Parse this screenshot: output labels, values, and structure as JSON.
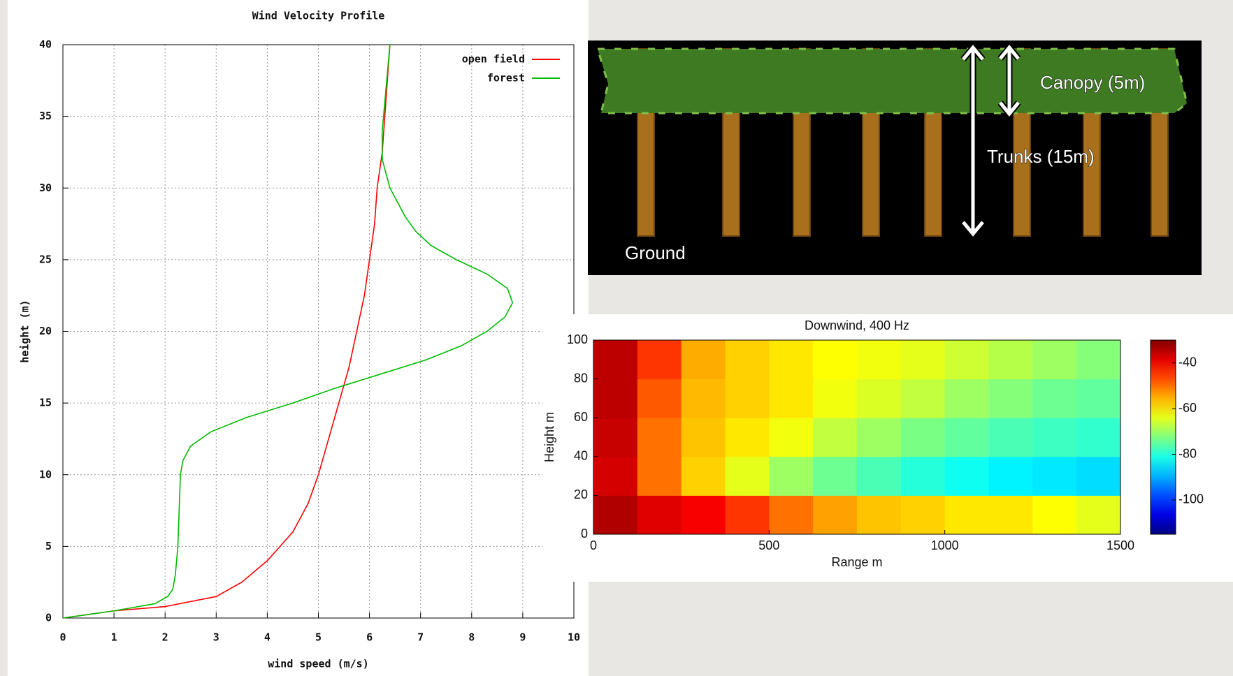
{
  "chart_data": [
    {
      "type": "line",
      "title": "Wind Velocity Profile",
      "x_label": "wind speed (m/s)",
      "y_label": "height (m)",
      "xlim": [
        0,
        10
      ],
      "ylim": [
        0,
        40
      ],
      "xticks": [
        0,
        1,
        2,
        3,
        4,
        5,
        6,
        7,
        8,
        9,
        10
      ],
      "yticks": [
        0,
        5,
        10,
        15,
        20,
        25,
        30,
        35,
        40
      ],
      "grid": true,
      "legend": "upper right",
      "series": [
        {
          "name": "open field",
          "color": "#ff0000",
          "x": [
            0,
            1,
            2,
            3,
            3.5,
            4,
            4.5,
            4.8,
            5,
            5.2,
            5.4,
            5.6,
            5.75,
            5.9,
            6,
            6.1,
            6.15,
            6.25,
            6.3,
            6.35,
            6.4
          ],
          "values": [
            0,
            0.5,
            0.8,
            1.5,
            2.5,
            4,
            6,
            8,
            10,
            12.5,
            15,
            17.5,
            20,
            22.5,
            25,
            27.5,
            30,
            32.5,
            35,
            37.5,
            40
          ]
        },
        {
          "name": "forest",
          "color": "#00bb00",
          "x": [
            0,
            1,
            1.8,
            2.05,
            2.15,
            2.2,
            2.25,
            2.28,
            2.3,
            2.35,
            2.5,
            2.9,
            3.6,
            4.5,
            5.3,
            6.2,
            7.1,
            7.8,
            8.3,
            8.65,
            8.8,
            8.7,
            8.3,
            7.7,
            7.2,
            6.9,
            6.7,
            6.4,
            6.25,
            6.25,
            6.3,
            6.35,
            6.4
          ],
          "values": [
            0,
            0.5,
            1,
            1.5,
            2,
            3,
            5,
            8,
            10,
            11,
            12,
            13,
            14,
            15,
            16,
            17,
            18,
            19,
            20,
            21,
            22,
            23,
            24,
            25,
            26,
            27,
            28,
            30,
            32,
            34,
            36,
            38,
            40
          ]
        }
      ]
    },
    {
      "type": "heatmap",
      "title": "Downwind, 400 Hz",
      "x_label": "Range m",
      "y_label": "Height m",
      "xlim": [
        0,
        1500
      ],
      "ylim": [
        0,
        100
      ],
      "xticks": [
        0,
        500,
        1000,
        1500
      ],
      "yticks": [
        0,
        20,
        40,
        60,
        80,
        100
      ],
      "colormap": "jet",
      "clim": [
        -115,
        -30
      ],
      "cticks": [
        -40,
        -60,
        -80,
        -100
      ],
      "x": [
        62.5,
        187.5,
        312.5,
        437.5,
        562.5,
        687.5,
        812.5,
        937.5,
        1062.5,
        1187.5,
        1312.5,
        1437.5
      ],
      "y": [
        10,
        30,
        50,
        70,
        90
      ],
      "z": [
        [
          -34,
          -38,
          -40,
          -45,
          -50,
          -54,
          -57,
          -58,
          -60,
          -60,
          -62,
          -64
        ],
        [
          -37,
          -50,
          -58,
          -64,
          -70,
          -74,
          -77,
          -80,
          -82,
          -84,
          -85,
          -86
        ],
        [
          -36,
          -50,
          -57,
          -60,
          -63,
          -67,
          -70,
          -73,
          -75,
          -77,
          -78,
          -79
        ],
        [
          -35,
          -48,
          -56,
          -58,
          -60,
          -63,
          -65,
          -67,
          -70,
          -72,
          -74,
          -75
        ],
        [
          -35,
          -45,
          -55,
          -58,
          -60,
          -62,
          -63,
          -64,
          -66,
          -68,
          -70,
          -72
        ]
      ]
    }
  ],
  "diagram": {
    "canopy": "Canopy (5m)",
    "trunks": "Trunks (15m)",
    "ground": "Ground"
  }
}
